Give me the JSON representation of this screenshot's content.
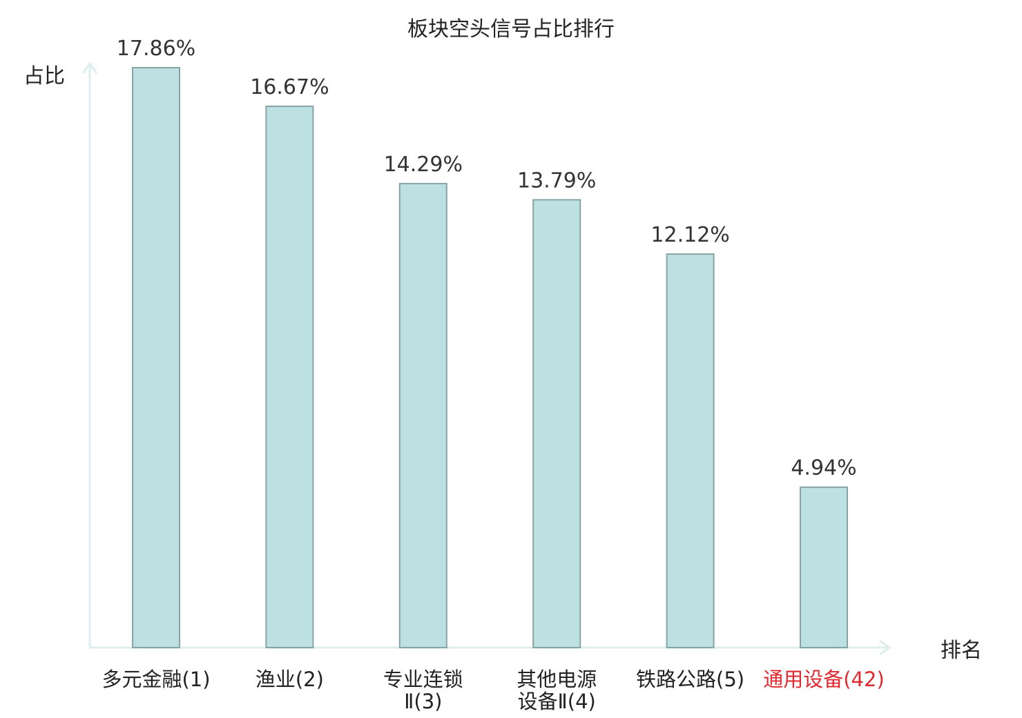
{
  "chart_data": {
    "type": "bar",
    "title": "板块空头信号占比排行",
    "xlabel": "排名",
    "ylabel": "占比",
    "categories": [
      [
        "多元金融(1)"
      ],
      [
        "渔业(2)"
      ],
      [
        "专业连锁",
        "Ⅱ(3)"
      ],
      [
        "其他电源",
        "设备Ⅱ(4)"
      ],
      [
        "铁路公路(5)"
      ],
      [
        "通用设备(42)"
      ]
    ],
    "values": [
      17.86,
      16.67,
      14.29,
      13.79,
      12.12,
      4.94
    ],
    "value_labels": [
      "17.86%",
      "16.67%",
      "14.29%",
      "13.79%",
      "12.12%",
      "4.94%"
    ],
    "highlight_index": 5,
    "ylim": [
      0,
      17.86
    ],
    "grid": false,
    "legend": "none"
  },
  "colors": {
    "bar_fill": "#bde0e3",
    "bar_stroke": "#86a3a6",
    "axis": "#dcefed",
    "text": "#222222",
    "highlight_text": "#e0292f"
  }
}
